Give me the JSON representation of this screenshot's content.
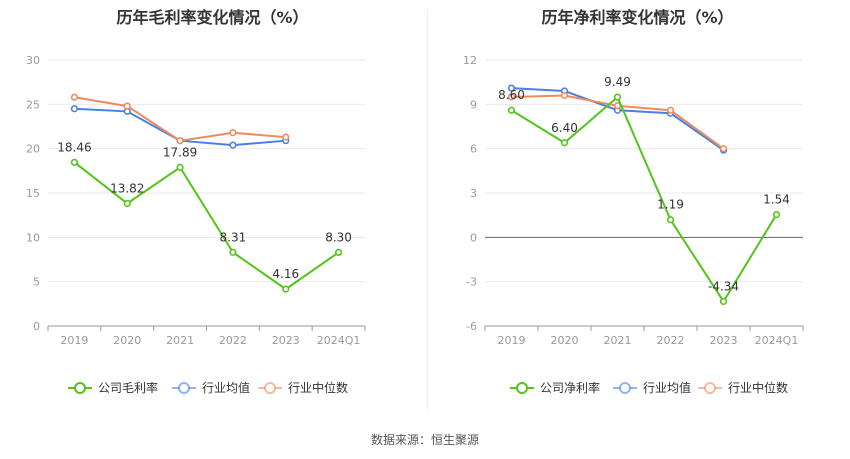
{
  "colors": {
    "company": "#52c41a",
    "avg": "#4a7ee8",
    "median": "#ef8a5e",
    "axis": "#999999",
    "grid": "#e9e9e9",
    "label": "#333333"
  },
  "source": "数据来源：恒生聚源",
  "charts": [
    {
      "title": "历年毛利率变化情况（%）"
    },
    {
      "title": "历年净利率变化情况（%）"
    }
  ],
  "chart_data": [
    {
      "type": "line",
      "title": "历年毛利率变化情况（%）",
      "categories": [
        "2019",
        "2020",
        "2021",
        "2022",
        "2023",
        "2024Q1"
      ],
      "ylim": [
        0,
        30
      ],
      "yticks": [
        0,
        5,
        10,
        15,
        20,
        25,
        30
      ],
      "ytick_labels": [
        "0",
        "5",
        "10",
        "15",
        "20",
        "25",
        "30"
      ],
      "grid": true,
      "legend_position": "bottom",
      "series": [
        {
          "name": "公司毛利率",
          "values": [
            18.46,
            13.82,
            17.89,
            8.31,
            4.16,
            8.3
          ],
          "labels": [
            "18.46",
            "13.82",
            "17.89",
            "8.31",
            "4.16",
            "8.30"
          ],
          "color": "#52c41a"
        },
        {
          "name": "行业均值",
          "values": [
            24.5,
            24.2,
            20.9,
            20.4,
            20.9,
            null
          ],
          "color": "#4a7ee8"
        },
        {
          "name": "行业中位数",
          "values": [
            25.8,
            24.8,
            20.9,
            21.8,
            21.3,
            null
          ],
          "color": "#ef8a5e"
        }
      ]
    },
    {
      "type": "line",
      "title": "历年净利率变化情况（%）",
      "categories": [
        "2019",
        "2020",
        "2021",
        "2022",
        "2023",
        "2024Q1"
      ],
      "ylim": [
        -6,
        12
      ],
      "yticks": [
        -6,
        -3,
        0,
        3,
        6,
        9,
        12
      ],
      "ytick_labels": [
        "-6",
        "-3",
        "0",
        "3",
        "6",
        "9",
        "12"
      ],
      "grid": true,
      "legend_position": "bottom",
      "series": [
        {
          "name": "公司净利率",
          "values": [
            8.6,
            6.4,
            9.49,
            1.19,
            -4.34,
            1.54
          ],
          "labels": [
            "8.60",
            "6.40",
            "9.49",
            "1.19",
            "-4.34",
            "1.54"
          ],
          "color": "#52c41a"
        },
        {
          "name": "行业均值",
          "values": [
            10.1,
            9.9,
            8.6,
            8.4,
            5.9,
            null
          ],
          "color": "#4a7ee8"
        },
        {
          "name": "行业中位数",
          "values": [
            9.5,
            9.6,
            8.9,
            8.6,
            6.0,
            null
          ],
          "color": "#ef8a5e"
        }
      ]
    }
  ]
}
